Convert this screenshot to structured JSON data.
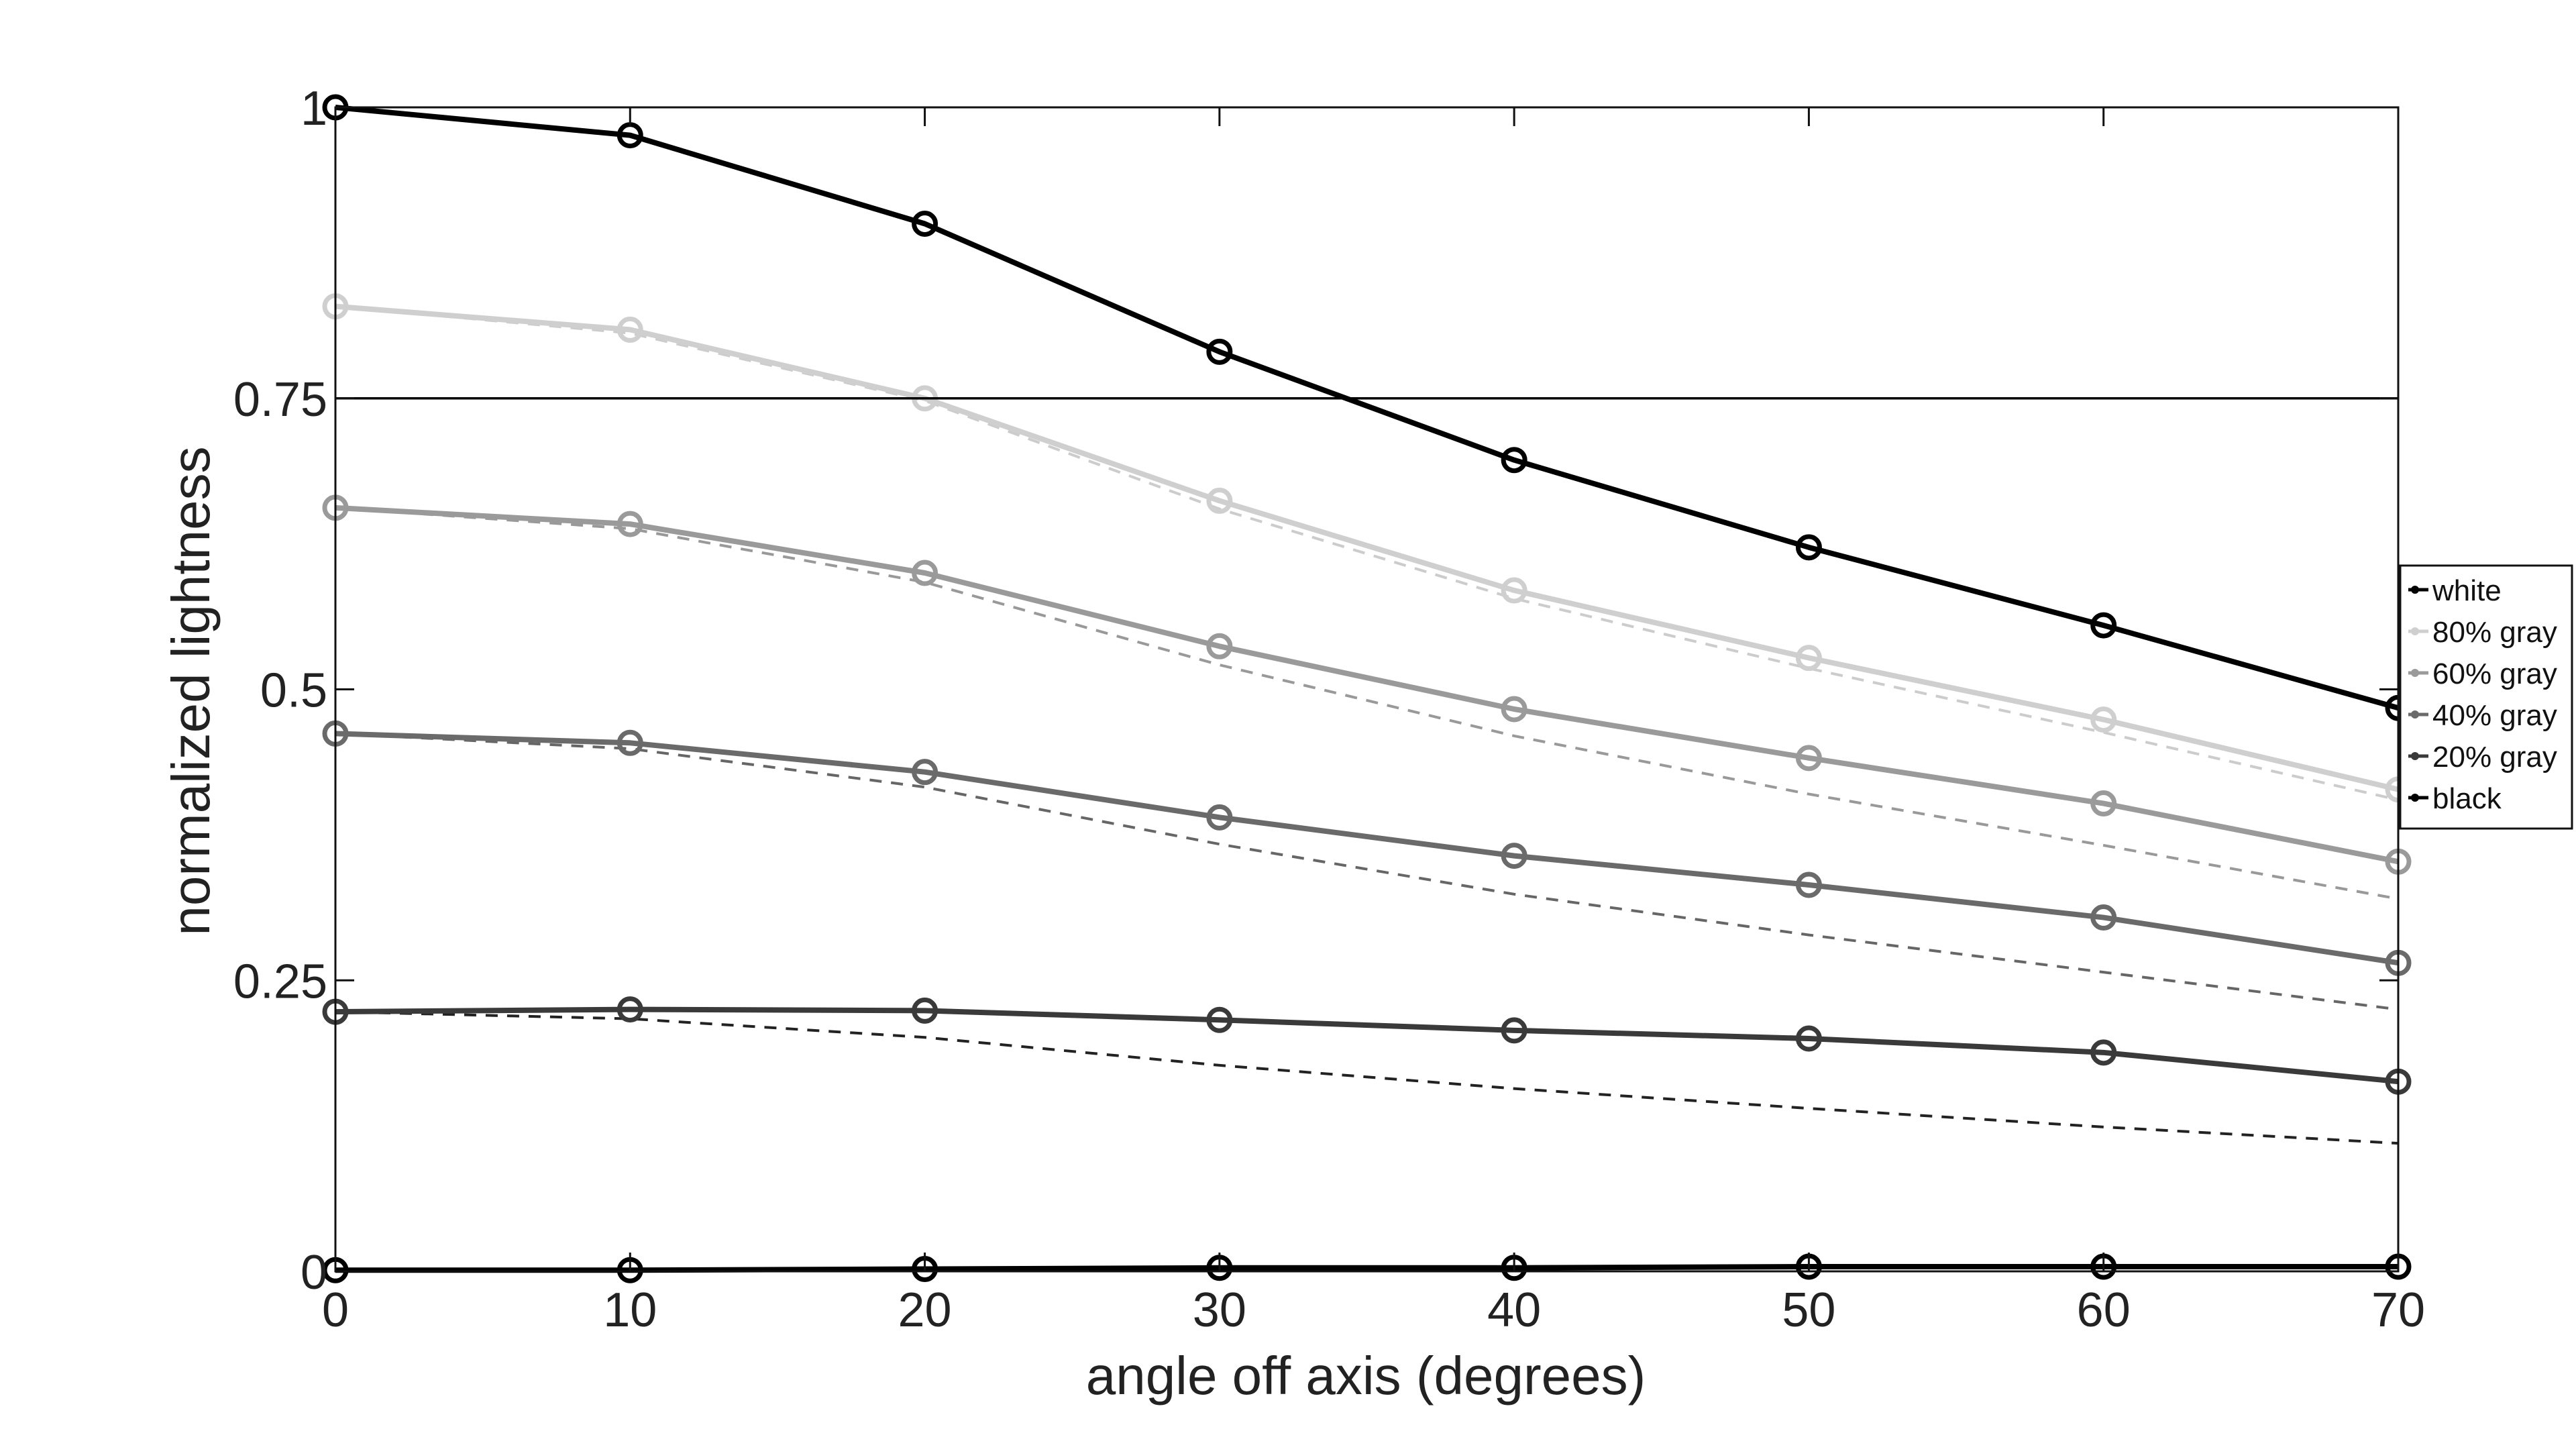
{
  "chart_data": {
    "type": "line",
    "title": "",
    "xlabel": "angle off axis (degrees)",
    "ylabel": "normalized lightness",
    "xlim": [
      0,
      70
    ],
    "ylim": [
      0,
      1
    ],
    "x": [
      0,
      10,
      20,
      30,
      40,
      50,
      60,
      70
    ],
    "xticks": [
      0,
      10,
      20,
      30,
      40,
      50,
      60,
      70
    ],
    "xtick_labels": [
      "0",
      "10",
      "20",
      "30",
      "40",
      "50",
      "60",
      "70"
    ],
    "yticks": [
      0,
      0.25,
      0.5,
      0.75,
      1
    ],
    "ytick_labels": [
      "0",
      "0.25",
      "0.5",
      "0.75",
      "1"
    ],
    "grid": false,
    "reference_line": 0.75,
    "legend_position": "right",
    "series": [
      {
        "name": "white",
        "color": "#000000",
        "values": [
          1.0,
          0.976,
          0.9,
          0.79,
          0.697,
          0.622,
          0.555,
          0.484
        ]
      },
      {
        "name": "80% gray",
        "color": "#cfcfcf",
        "values": [
          0.829,
          0.809,
          0.75,
          0.662,
          0.585,
          0.527,
          0.474,
          0.414
        ]
      },
      {
        "name": "60% gray",
        "color": "#9a9a9a",
        "values": [
          0.656,
          0.642,
          0.6,
          0.537,
          0.483,
          0.441,
          0.402,
          0.352
        ]
      },
      {
        "name": "40% gray",
        "color": "#6a6a6a",
        "values": [
          0.462,
          0.454,
          0.429,
          0.39,
          0.357,
          0.332,
          0.304,
          0.265
        ]
      },
      {
        "name": "20% gray",
        "color": "#3a3a3a",
        "values": [
          0.223,
          0.225,
          0.224,
          0.216,
          0.207,
          0.2,
          0.188,
          0.163
        ]
      },
      {
        "name": "black",
        "color": "#000000",
        "values": [
          0.001,
          0.001,
          0.002,
          0.003,
          0.003,
          0.004,
          0.004,
          0.004
        ]
      }
    ],
    "reference_series": [
      {
        "color": "#cccccc",
        "values": [
          0.829,
          0.806,
          0.748,
          0.655,
          0.578,
          0.518,
          0.463,
          0.405
        ]
      },
      {
        "color": "#999999",
        "values": [
          0.656,
          0.638,
          0.592,
          0.521,
          0.46,
          0.41,
          0.366,
          0.32
        ]
      },
      {
        "color": "#666666",
        "values": [
          0.462,
          0.449,
          0.416,
          0.367,
          0.324,
          0.289,
          0.257,
          0.225
        ]
      },
      {
        "color": "#222222",
        "values": [
          0.223,
          0.217,
          0.201,
          0.177,
          0.157,
          0.14,
          0.124,
          0.11
        ]
      }
    ]
  }
}
